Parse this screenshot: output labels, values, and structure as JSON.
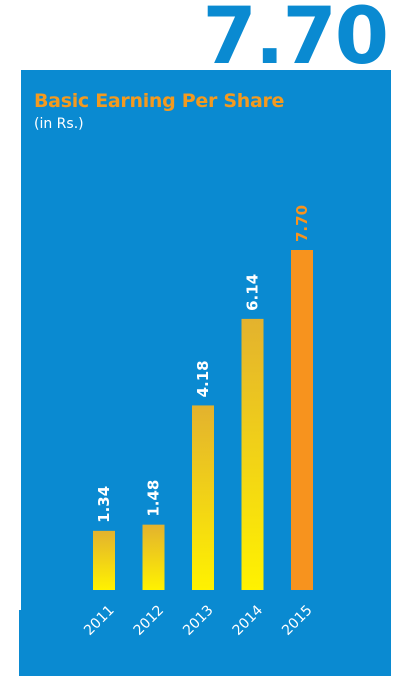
{
  "headline_value": "7.70",
  "chart_data": {
    "type": "bar",
    "title": "Basic Earning Per Share",
    "subtitle": "(in Rs.)",
    "categories": [
      "2011",
      "2012",
      "2013",
      "2014",
      "2015"
    ],
    "values": [
      1.34,
      1.48,
      4.18,
      6.14,
      7.7
    ],
    "value_labels": [
      "1.34",
      "1.48",
      "4.18",
      "6.14",
      "7.70"
    ],
    "highlight_index": 4,
    "ylim": [
      0,
      7.7
    ],
    "grid": false,
    "legend": "none"
  },
  "colors": {
    "panel": "#0a8ad1",
    "headline": "#0a8ad1",
    "title": "#f39a1f",
    "bar_top": "#e3b22e",
    "bar_bottom": "#fff200",
    "highlight_bar": "#f7931e",
    "highlight_label": "#f7931e",
    "label": "#ffffff"
  }
}
